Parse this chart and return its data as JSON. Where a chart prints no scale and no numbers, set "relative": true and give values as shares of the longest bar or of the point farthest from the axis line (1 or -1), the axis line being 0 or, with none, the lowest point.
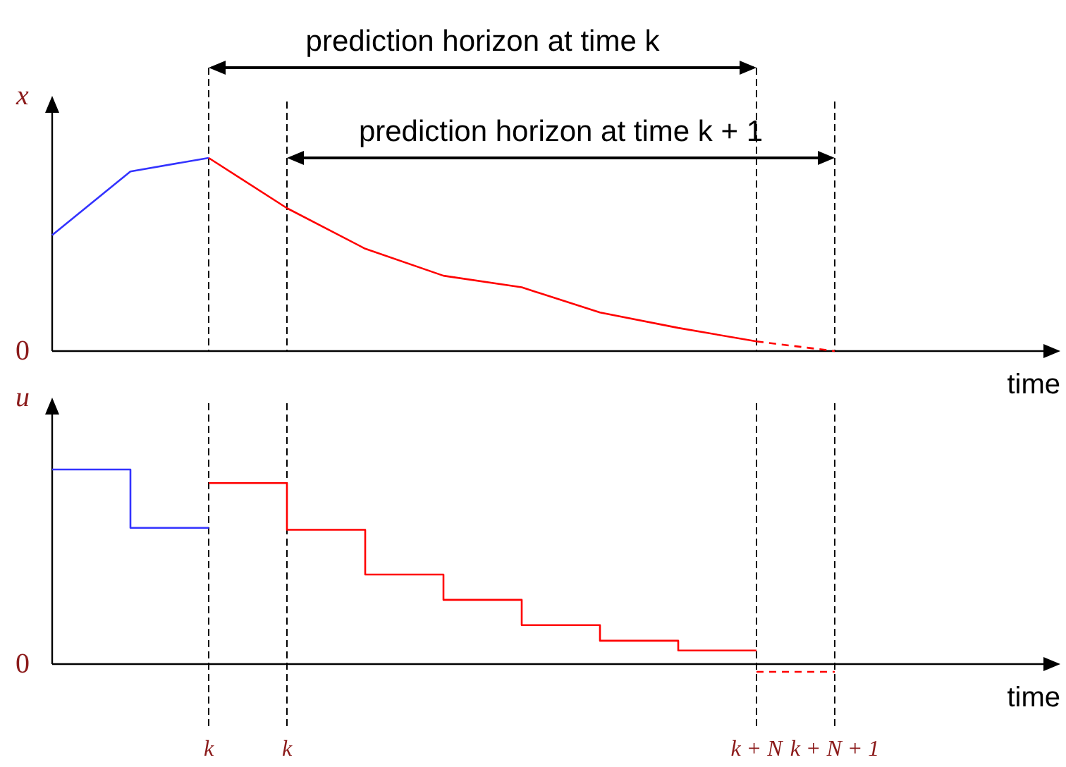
{
  "chart_data": [
    {
      "type": "line",
      "relative": true,
      "xlabel": "time",
      "ylabel": "x",
      "grid": "x",
      "categories": [
        null,
        null,
        null,
        null,
        null,
        null,
        null,
        null,
        null,
        null,
        null,
        null,
        null
      ],
      "annotations": [
        "prediction horizon at time k",
        "prediction horizon at time k + 1",
        "0"
      ],
      "series": [
        {
          "color": "#3333ff",
          "values": [
            0.6,
            0.93,
            1,
            null,
            null,
            null,
            null,
            null,
            null,
            null,
            null,
            null,
            null
          ]
        },
        {
          "color": "#ff0000",
          "values": [
            null,
            null,
            1,
            0.74,
            0.53,
            0.39,
            0.33,
            0.2,
            0.12,
            0.05,
            null,
            null,
            null
          ]
        },
        {
          "color": "#ff0000",
          "line_style": "dashed",
          "values": [
            null,
            null,
            null,
            null,
            null,
            null,
            null,
            null,
            null,
            0.05,
            0,
            null,
            null
          ]
        }
      ]
    },
    {
      "type": "step",
      "relative": true,
      "xlabel": "time",
      "ylabel": "u",
      "grid": "x",
      "categories": [
        null,
        null,
        "k",
        "k",
        null,
        null,
        null,
        null,
        null,
        "k + N",
        "k + N + 1",
        null,
        null
      ],
      "annotations": [
        "0"
      ],
      "series": [
        {
          "color": "#3333ff",
          "values": [
            1,
            0.7,
            0.7,
            null,
            null,
            null,
            null,
            null,
            null,
            null,
            null,
            null,
            null
          ]
        },
        {
          "color": "#ff0000",
          "values": [
            null,
            null,
            0.93,
            0.69,
            0.46,
            0.33,
            0.2,
            0.12,
            0.07,
            0.07,
            null,
            null,
            null
          ]
        },
        {
          "color": "#ff0000",
          "line_style": "dashed",
          "values": [
            null,
            null,
            null,
            null,
            null,
            null,
            null,
            null,
            null,
            -0.04,
            -0.04,
            null,
            null
          ]
        }
      ]
    }
  ]
}
